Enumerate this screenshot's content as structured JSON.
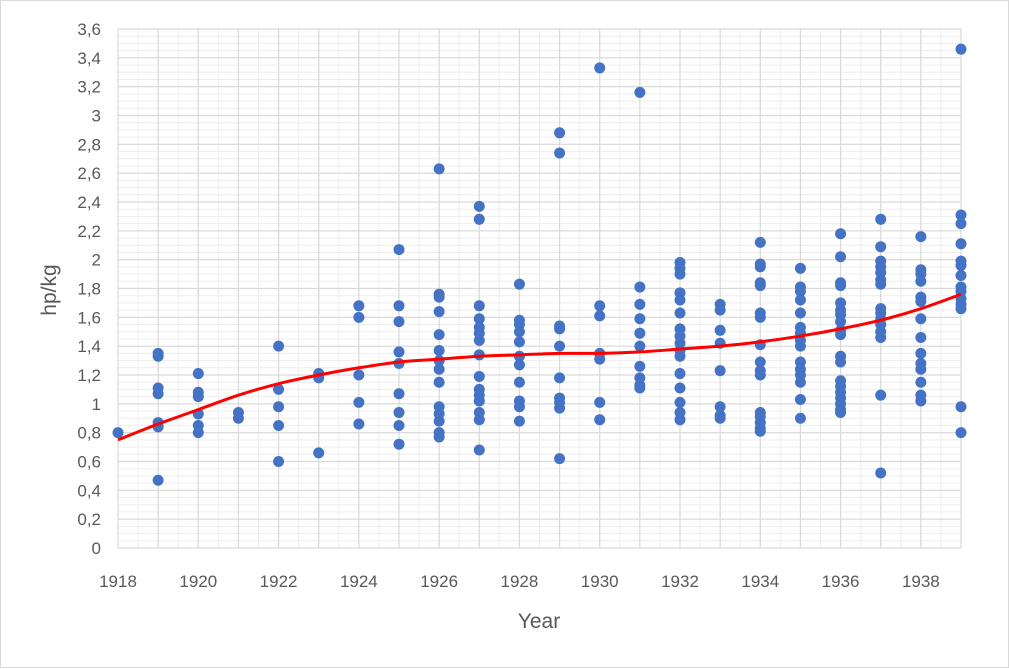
{
  "chart_data": {
    "type": "scatter",
    "title": "",
    "xlabel": "Year",
    "ylabel": "hp/kg",
    "xlim": [
      1918,
      1939
    ],
    "ylim": [
      0,
      3.6
    ],
    "x_ticks": [
      "1918",
      "1920",
      "1922",
      "1924",
      "1926",
      "1928",
      "1930",
      "1932",
      "1934",
      "1936",
      "1938"
    ],
    "y_ticks": [
      "0",
      "0,2",
      "0,4",
      "0,6",
      "0,8",
      "1",
      "1,2",
      "1,4",
      "1,6",
      "1,8",
      "2",
      "2,2",
      "2,4",
      "2,6",
      "2,8",
      "3",
      "3,2",
      "3,4",
      "3,6"
    ],
    "grid": true,
    "legend": "none",
    "colors": {
      "points": "#4472c4",
      "trend": "#ff0000",
      "grid": "#d9d9d9"
    },
    "series": [
      {
        "type": "scatter",
        "points": [
          [
            1918,
            0.8
          ],
          [
            1919,
            1.35
          ],
          [
            1919,
            1.33
          ],
          [
            1919,
            1.11
          ],
          [
            1919,
            1.07
          ],
          [
            1919,
            0.87
          ],
          [
            1919,
            0.84
          ],
          [
            1919,
            0.47
          ],
          [
            1920,
            1.21
          ],
          [
            1920,
            1.08
          ],
          [
            1920,
            1.05
          ],
          [
            1920,
            0.93
          ],
          [
            1920,
            0.85
          ],
          [
            1920,
            0.8
          ],
          [
            1921,
            0.94
          ],
          [
            1921,
            0.9
          ],
          [
            1922,
            1.4
          ],
          [
            1922,
            1.1
          ],
          [
            1922,
            0.98
          ],
          [
            1922,
            0.85
          ],
          [
            1922,
            0.6
          ],
          [
            1923,
            1.21
          ],
          [
            1923,
            1.18
          ],
          [
            1923,
            0.66
          ],
          [
            1924,
            1.68
          ],
          [
            1924,
            1.6
          ],
          [
            1924,
            1.2
          ],
          [
            1924,
            1.01
          ],
          [
            1924,
            0.86
          ],
          [
            1925,
            2.07
          ],
          [
            1925,
            1.68
          ],
          [
            1925,
            1.57
          ],
          [
            1925,
            1.36
          ],
          [
            1925,
            1.28
          ],
          [
            1925,
            1.07
          ],
          [
            1925,
            0.94
          ],
          [
            1925,
            0.85
          ],
          [
            1925,
            0.72
          ],
          [
            1926,
            2.63
          ],
          [
            1926,
            1.76
          ],
          [
            1926,
            1.74
          ],
          [
            1926,
            1.64
          ],
          [
            1926,
            1.48
          ],
          [
            1926,
            1.37
          ],
          [
            1926,
            1.3
          ],
          [
            1926,
            1.24
          ],
          [
            1926,
            1.15
          ],
          [
            1926,
            0.98
          ],
          [
            1926,
            0.93
          ],
          [
            1926,
            0.88
          ],
          [
            1926,
            0.8
          ],
          [
            1926,
            0.77
          ],
          [
            1927,
            2.37
          ],
          [
            1927,
            2.28
          ],
          [
            1927,
            1.68
          ],
          [
            1927,
            1.59
          ],
          [
            1927,
            1.53
          ],
          [
            1927,
            1.49
          ],
          [
            1927,
            1.44
          ],
          [
            1927,
            1.34
          ],
          [
            1927,
            1.19
          ],
          [
            1927,
            1.1
          ],
          [
            1927,
            1.06
          ],
          [
            1927,
            1.02
          ],
          [
            1927,
            0.94
          ],
          [
            1927,
            0.89
          ],
          [
            1927,
            0.68
          ],
          [
            1928,
            1.83
          ],
          [
            1928,
            1.58
          ],
          [
            1928,
            1.55
          ],
          [
            1928,
            1.5
          ],
          [
            1928,
            1.43
          ],
          [
            1928,
            1.33
          ],
          [
            1928,
            1.27
          ],
          [
            1928,
            1.15
          ],
          [
            1928,
            1.02
          ],
          [
            1928,
            0.98
          ],
          [
            1928,
            0.88
          ],
          [
            1929,
            2.88
          ],
          [
            1929,
            2.74
          ],
          [
            1929,
            1.54
          ],
          [
            1929,
            1.52
          ],
          [
            1929,
            1.4
          ],
          [
            1929,
            1.18
          ],
          [
            1929,
            1.04
          ],
          [
            1929,
            1.01
          ],
          [
            1929,
            0.97
          ],
          [
            1929,
            0.62
          ],
          [
            1930,
            3.33
          ],
          [
            1930,
            1.68
          ],
          [
            1930,
            1.61
          ],
          [
            1930,
            1.35
          ],
          [
            1930,
            1.31
          ],
          [
            1930,
            1.01
          ],
          [
            1930,
            0.89
          ],
          [
            1931,
            3.16
          ],
          [
            1931,
            1.81
          ],
          [
            1931,
            1.69
          ],
          [
            1931,
            1.59
          ],
          [
            1931,
            1.49
          ],
          [
            1931,
            1.4
          ],
          [
            1931,
            1.26
          ],
          [
            1931,
            1.18
          ],
          [
            1931,
            1.13
          ],
          [
            1931,
            1.11
          ],
          [
            1932,
            1.98
          ],
          [
            1932,
            1.94
          ],
          [
            1932,
            1.9
          ],
          [
            1932,
            1.77
          ],
          [
            1932,
            1.72
          ],
          [
            1932,
            1.63
          ],
          [
            1932,
            1.52
          ],
          [
            1932,
            1.47
          ],
          [
            1932,
            1.42
          ],
          [
            1932,
            1.37
          ],
          [
            1932,
            1.33
          ],
          [
            1932,
            1.21
          ],
          [
            1932,
            1.11
          ],
          [
            1932,
            1.01
          ],
          [
            1932,
            0.94
          ],
          [
            1932,
            0.89
          ],
          [
            1933,
            1.69
          ],
          [
            1933,
            1.65
          ],
          [
            1933,
            1.51
          ],
          [
            1933,
            1.42
          ],
          [
            1933,
            1.23
          ],
          [
            1933,
            0.98
          ],
          [
            1933,
            0.92
          ],
          [
            1933,
            0.9
          ],
          [
            1934,
            2.12
          ],
          [
            1934,
            1.97
          ],
          [
            1934,
            1.95
          ],
          [
            1934,
            1.84
          ],
          [
            1934,
            1.82
          ],
          [
            1934,
            1.63
          ],
          [
            1934,
            1.6
          ],
          [
            1934,
            1.41
          ],
          [
            1934,
            1.29
          ],
          [
            1934,
            1.23
          ],
          [
            1934,
            1.2
          ],
          [
            1934,
            0.94
          ],
          [
            1934,
            0.91
          ],
          [
            1934,
            0.87
          ],
          [
            1934,
            0.83
          ],
          [
            1934,
            0.81
          ],
          [
            1935,
            1.94
          ],
          [
            1935,
            1.81
          ],
          [
            1935,
            1.78
          ],
          [
            1935,
            1.72
          ],
          [
            1935,
            1.63
          ],
          [
            1935,
            1.53
          ],
          [
            1935,
            1.49
          ],
          [
            1935,
            1.44
          ],
          [
            1935,
            1.4
          ],
          [
            1935,
            1.29
          ],
          [
            1935,
            1.24
          ],
          [
            1935,
            1.2
          ],
          [
            1935,
            1.15
          ],
          [
            1935,
            1.03
          ],
          [
            1935,
            0.9
          ],
          [
            1936,
            2.18
          ],
          [
            1936,
            2.02
          ],
          [
            1936,
            1.84
          ],
          [
            1936,
            1.82
          ],
          [
            1936,
            1.7
          ],
          [
            1936,
            1.65
          ],
          [
            1936,
            1.62
          ],
          [
            1936,
            1.57
          ],
          [
            1936,
            1.51
          ],
          [
            1936,
            1.48
          ],
          [
            1936,
            1.33
          ],
          [
            1936,
            1.29
          ],
          [
            1936,
            1.16
          ],
          [
            1936,
            1.12
          ],
          [
            1936,
            1.08
          ],
          [
            1936,
            1.04
          ],
          [
            1936,
            1.0
          ],
          [
            1936,
            0.96
          ],
          [
            1936,
            0.94
          ],
          [
            1937,
            2.28
          ],
          [
            1937,
            2.09
          ],
          [
            1937,
            1.99
          ],
          [
            1937,
            1.95
          ],
          [
            1937,
            1.91
          ],
          [
            1937,
            1.86
          ],
          [
            1937,
            1.83
          ],
          [
            1937,
            1.66
          ],
          [
            1937,
            1.63
          ],
          [
            1937,
            1.59
          ],
          [
            1937,
            1.55
          ],
          [
            1937,
            1.5
          ],
          [
            1937,
            1.46
          ],
          [
            1937,
            1.06
          ],
          [
            1937,
            0.52
          ],
          [
            1938,
            2.16
          ],
          [
            1938,
            1.93
          ],
          [
            1938,
            1.9
          ],
          [
            1938,
            1.85
          ],
          [
            1938,
            1.74
          ],
          [
            1938,
            1.71
          ],
          [
            1938,
            1.59
          ],
          [
            1938,
            1.46
          ],
          [
            1938,
            1.35
          ],
          [
            1938,
            1.28
          ],
          [
            1938,
            1.24
          ],
          [
            1938,
            1.15
          ],
          [
            1938,
            1.06
          ],
          [
            1938,
            1.02
          ],
          [
            1939,
            3.46
          ],
          [
            1939,
            2.31
          ],
          [
            1939,
            2.25
          ],
          [
            1939,
            2.11
          ],
          [
            1939,
            1.99
          ],
          [
            1939,
            1.96
          ],
          [
            1939,
            1.89
          ],
          [
            1939,
            1.81
          ],
          [
            1939,
            1.78
          ],
          [
            1939,
            1.73
          ],
          [
            1939,
            1.69
          ],
          [
            1939,
            1.66
          ],
          [
            1939,
            0.98
          ],
          [
            1939,
            0.8
          ]
        ]
      },
      {
        "type": "line",
        "x": [
          1918,
          1919,
          1920,
          1921,
          1922,
          1923,
          1924,
          1925,
          1926,
          1927,
          1928,
          1929,
          1930,
          1931,
          1932,
          1933,
          1934,
          1935,
          1936,
          1937,
          1938,
          1939
        ],
        "y": [
          0.75,
          0.86,
          0.96,
          1.06,
          1.14,
          1.2,
          1.25,
          1.29,
          1.31,
          1.33,
          1.34,
          1.35,
          1.35,
          1.36,
          1.38,
          1.4,
          1.43,
          1.47,
          1.52,
          1.58,
          1.66,
          1.76
        ]
      }
    ]
  }
}
